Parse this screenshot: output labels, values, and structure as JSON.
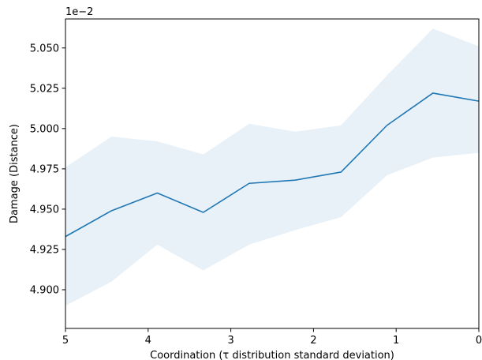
{
  "chart_data": {
    "type": "line",
    "title": "",
    "xlabel": "Coordination (τ distribution standard deviation)",
    "ylabel": "Damage (Distance)",
    "offset_text": "1e−2",
    "xlim": [
      5,
      0
    ],
    "x_reversed": true,
    "ylim": [
      4.876,
      5.068
    ],
    "grid": false,
    "legend": "none",
    "x_ticks": [
      5,
      4,
      3,
      2,
      1,
      0
    ],
    "x_tick_labels": [
      "5",
      "4",
      "3",
      "2",
      "1",
      "0"
    ],
    "y_ticks": [
      4.9,
      4.925,
      4.95,
      4.975,
      5.0,
      5.025,
      5.05
    ],
    "y_tick_labels": [
      "4.900",
      "4.925",
      "4.950",
      "4.975",
      "5.000",
      "5.025",
      "5.050"
    ],
    "x": [
      5.0,
      4.444,
      3.889,
      3.333,
      2.778,
      2.222,
      1.667,
      1.111,
      0.556,
      0.0
    ],
    "series": [
      {
        "values": [
          4.933,
          4.949,
          4.96,
          4.948,
          4.966,
          4.968,
          4.973,
          5.002,
          5.022,
          5.017
        ],
        "lower": [
          4.89,
          4.905,
          4.928,
          4.912,
          4.928,
          4.937,
          4.945,
          4.971,
          4.982,
          4.985
        ],
        "upper": [
          4.976,
          4.995,
          4.992,
          4.984,
          5.003,
          4.998,
          5.002,
          5.033,
          5.062,
          5.051
        ],
        "color": "#1f77b4",
        "band_color": "#1f77b4",
        "band_opacity": 0.1
      }
    ]
  }
}
